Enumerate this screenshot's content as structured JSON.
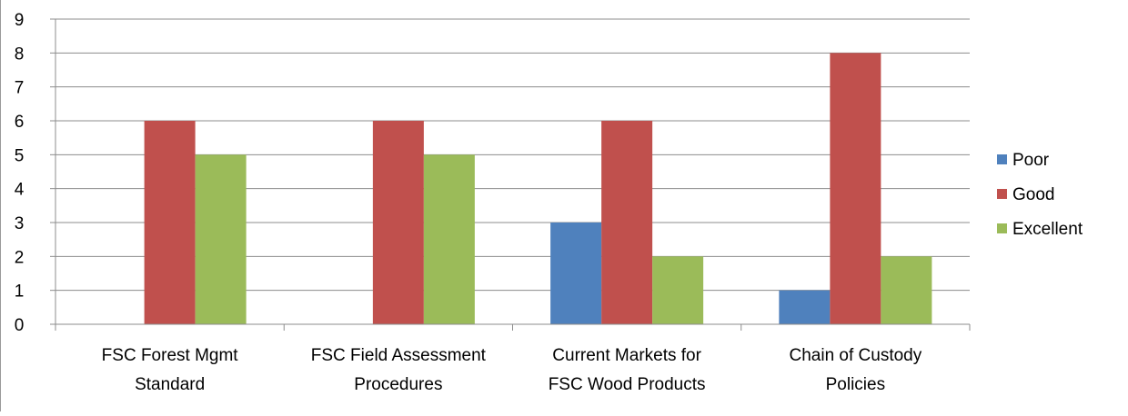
{
  "chart_data": {
    "type": "bar",
    "categories": [
      [
        "FSC Forest Mgmt",
        "Standard"
      ],
      [
        "FSC Field Assessment",
        "Procedures"
      ],
      [
        "Current Markets for",
        "FSC Wood Products"
      ],
      [
        "Chain of Custody",
        "Policies"
      ]
    ],
    "series": [
      {
        "name": "Poor",
        "color": "#4F81BD",
        "values": [
          0,
          0,
          3,
          1
        ]
      },
      {
        "name": "Good",
        "color": "#C0504D",
        "values": [
          6,
          6,
          6,
          8
        ]
      },
      {
        "name": "Excellent",
        "color": "#9BBB59",
        "values": [
          5,
          5,
          2,
          2
        ]
      }
    ],
    "ylim": [
      0,
      9
    ],
    "yticks": [
      0,
      1,
      2,
      3,
      4,
      5,
      6,
      7,
      8,
      9
    ],
    "grid": true,
    "legend": "right",
    "title": "",
    "xlabel": "",
    "ylabel": ""
  }
}
